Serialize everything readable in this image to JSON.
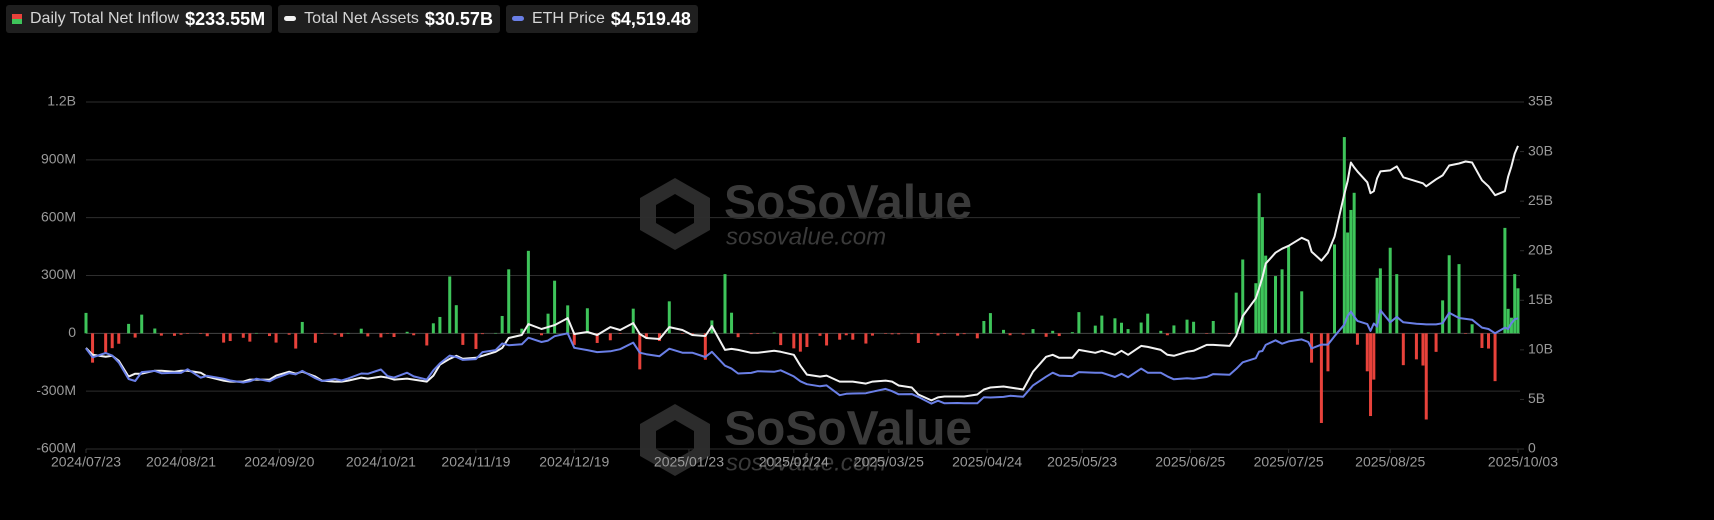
{
  "chart_data": {
    "type": "bar-line",
    "series": [
      {
        "name": "Daily Total Net Inflow",
        "latest_label": "$233.55M",
        "type": "bar",
        "colors": {
          "positive": "#3ec45a",
          "negative": "#e8423b"
        },
        "values": [
          106,
          -152,
          -98,
          -77,
          -54,
          49,
          -22,
          97,
          25,
          -12,
          -13,
          -7,
          -1,
          -3,
          -15,
          -48,
          -40,
          -23,
          -43,
          2,
          -14,
          -48,
          -7,
          -79,
          59,
          -49,
          -2,
          -7,
          -18,
          2,
          24,
          -16,
          -21,
          -1,
          -19,
          8,
          -10,
          -63,
          52,
          85,
          295,
          146,
          -60,
          -81,
          -4,
          2,
          90,
          332,
          24,
          428,
          -10,
          102,
          273,
          145,
          -60,
          130,
          -50,
          -36,
          -3,
          128,
          -187,
          -23,
          -40,
          166,
          -2,
          -10,
          -137,
          67,
          307,
          107,
          -20,
          -4,
          -1,
          4,
          -61,
          -78,
          -95,
          -71,
          -13,
          -63,
          -33,
          -10,
          -33,
          -53,
          -12,
          -1,
          -5,
          -5,
          -4,
          -50,
          -3,
          -11,
          -3,
          -12,
          -4,
          -26,
          64,
          105,
          18,
          -10,
          -6,
          22,
          -18,
          13,
          -14,
          6,
          110,
          40,
          92,
          78,
          55,
          22,
          56,
          102,
          13,
          -10,
          41,
          71,
          60,
          -1,
          64,
          -1,
          211,
          383,
          260,
          727,
          603,
          403,
          297,
          332,
          453,
          218,
          5,
          -152,
          -465,
          -197,
          461,
          1018,
          523,
          640,
          729,
          -59,
          -197,
          -429,
          -240,
          288,
          337,
          444,
          307,
          -165,
          -135,
          -167,
          -447,
          -96,
          171,
          405,
          359,
          -1,
          47,
          -76,
          -79,
          -248,
          547,
          127,
          81,
          307,
          233.55
        ]
      },
      {
        "name": "Total Net Assets",
        "latest_label": "$30.57B",
        "type": "line",
        "axis": "y2",
        "color": "#f2f2f2",
        "values": [
          10.2,
          9.5,
          9.3,
          9.4,
          8.9,
          7.3,
          7.6,
          7.6,
          7.9,
          7.9,
          7.8,
          7.9,
          7.9,
          7.7,
          7.3,
          6.9,
          6.8,
          6.8,
          7.0,
          7.0,
          7.0,
          7.4,
          7.8,
          7.6,
          7.8,
          7.3,
          6.9,
          6.8,
          6.8,
          6.9,
          7.2,
          7.1,
          7.3,
          7.2,
          7.0,
          7.1,
          7.0,
          6.8,
          7.4,
          8.5,
          9.1,
          9.4,
          9.1,
          9.2,
          9.4,
          9.8,
          10.2,
          11.2,
          11.5,
          12.6,
          12.1,
          12.3,
          12.5,
          13.2,
          11.6,
          11.8,
          11.5,
          12.3,
          12.0,
          12.7,
          11.6,
          11.2,
          11.1,
          12.3,
          12.0,
          11.5,
          11.4,
          12.4,
          10.0,
          10.1,
          10.0,
          9.7,
          9.7,
          9.9,
          9.8,
          9.5,
          8.4,
          7.5,
          7.3,
          7.4,
          6.8,
          6.8,
          6.8,
          6.6,
          6.8,
          6.9,
          6.8,
          6.4,
          6.2,
          5.5,
          4.9,
          5.2,
          5.3,
          5.3,
          5.3,
          5.5,
          6.0,
          6.2,
          6.3,
          6.2,
          6.0,
          7.8,
          9.3,
          9.5,
          9.2,
          9.2,
          10.0,
          9.7,
          9.9,
          9.5,
          9.9,
          9.5,
          10.4,
          10.3,
          10.0,
          9.5,
          9.4,
          9.8,
          9.9,
          10.5,
          10.5,
          10.4,
          11.4,
          13.4,
          15.2,
          16.2,
          17.3,
          18.7,
          19.8,
          20.2,
          20.5,
          21.3,
          21.0,
          19.9,
          19.0,
          19.8,
          21.4,
          25.7,
          27.0,
          28.9,
          28.4,
          28.0,
          26.9,
          25.8,
          26.0,
          27.3,
          28.0,
          28.1,
          28.5,
          27.4,
          27.0,
          26.8,
          26.5,
          27.2,
          27.6,
          28.6,
          28.8,
          29.0,
          28.9,
          27.1,
          26.5,
          25.6,
          26.0,
          27.5,
          28.5,
          29.8,
          30.57
        ]
      },
      {
        "name": "ETH Price",
        "latest_label": "$4,519.48",
        "type": "line",
        "axis": "y3",
        "color": "#6a7fe6",
        "values": [
          3480,
          3170,
          3320,
          3230,
          2990,
          2420,
          2350,
          2660,
          2700,
          2620,
          2640,
          2630,
          2760,
          2470,
          2530,
          2430,
          2370,
          2300,
          2340,
          2430,
          2340,
          2460,
          2620,
          2580,
          2700,
          2450,
          2350,
          2420,
          2370,
          2440,
          2610,
          2600,
          2750,
          2520,
          2470,
          2640,
          2510,
          2400,
          2720,
          2960,
          3230,
          3180,
          3080,
          3110,
          3350,
          3420,
          3650,
          3590,
          3620,
          3850,
          3700,
          3750,
          3900,
          4000,
          3500,
          3420,
          3350,
          3380,
          3450,
          3680,
          3330,
          3280,
          3210,
          3470,
          3330,
          3330,
          3180,
          3360,
          2880,
          2780,
          2610,
          2630,
          2690,
          2670,
          2720,
          2510,
          2340,
          2240,
          2170,
          2200,
          1860,
          1910,
          1920,
          1930,
          1980,
          2080,
          2000,
          1890,
          1900,
          1800,
          1570,
          1670,
          1580,
          1590,
          1580,
          1580,
          1790,
          1780,
          1800,
          1840,
          1810,
          2200,
          2500,
          2640,
          2540,
          2520,
          2660,
          2640,
          2640,
          2490,
          2600,
          2480,
          2780,
          2640,
          2640,
          2510,
          2410,
          2450,
          2430,
          2490,
          2590,
          2570,
          2770,
          3000,
          3140,
          3370,
          3390,
          3600,
          3760,
          3640,
          3720,
          3790,
          3700,
          3480,
          3610,
          3610,
          3900,
          4300,
          4600,
          4750,
          4580,
          4430,
          4320,
          4080,
          4340,
          4230,
          4800,
          4380,
          4570,
          4380,
          4330,
          4320,
          4310,
          4310,
          4350,
          4710,
          4530,
          4500,
          4470,
          4200,
          4150,
          4000,
          4200,
          4150,
          4350,
          4490,
          4519.48
        ]
      }
    ],
    "x": [
      "2024/07/23",
      "2024/07/25",
      "2024/07/29",
      "2024/07/31",
      "2024/08/02",
      "2024/08/05",
      "2024/08/07",
      "2024/08/09",
      "2024/08/13",
      "2024/08/15",
      "2024/08/19",
      "2024/08/21",
      "2024/08/23",
      "2024/08/27",
      "2024/08/29",
      "2024/09/03",
      "2024/09/05",
      "2024/09/09",
      "2024/09/11",
      "2024/09/13",
      "2024/09/17",
      "2024/09/19",
      "2024/09/23",
      "2024/09/25",
      "2024/09/27",
      "2024/10/01",
      "2024/10/03",
      "2024/10/07",
      "2024/10/09",
      "2024/10/11",
      "2024/10/15",
      "2024/10/17",
      "2024/10/21",
      "2024/10/23",
      "2024/10/25",
      "2024/10/29",
      "2024/10/31",
      "2024/11/04",
      "2024/11/06",
      "2024/11/08",
      "2024/11/11",
      "2024/11/13",
      "2024/11/15",
      "2024/11/19",
      "2024/11/21",
      "2024/11/25",
      "2024/11/27",
      "2024/11/29",
      "2024/12/03",
      "2024/12/05",
      "2024/12/09",
      "2024/12/11",
      "2024/12/13",
      "2024/12/17",
      "2024/12/19",
      "2024/12/23",
      "2024/12/26",
      "2024/12/30",
      "2025/01/02",
      "2025/01/06",
      "2025/01/08",
      "2025/01/10",
      "2025/01/14",
      "2025/01/17",
      "2025/01/21",
      "2025/01/24",
      "2025/01/28",
      "2025/01/30",
      "2025/02/03",
      "2025/02/05",
      "2025/02/07",
      "2025/02/11",
      "2025/02/13",
      "2025/02/18",
      "2025/02/20",
      "2025/02/24",
      "2025/02/26",
      "2025/02/28",
      "2025/03/04",
      "2025/03/06",
      "2025/03/10",
      "2025/03/12",
      "2025/03/14",
      "2025/03/18",
      "2025/03/20",
      "2025/03/24",
      "2025/03/26",
      "2025/03/28",
      "2025/04/01",
      "2025/04/03",
      "2025/04/07",
      "2025/04/09",
      "2025/04/11",
      "2025/04/15",
      "2025/04/17",
      "2025/04/21",
      "2025/04/23",
      "2025/04/25",
      "2025/04/29",
      "2025/05/01",
      "2025/05/05",
      "2025/05/08",
      "2025/05/12",
      "2025/05/14",
      "2025/05/16",
      "2025/05/20",
      "2025/05/22",
      "2025/05/27",
      "2025/05/29",
      "2025/06/02",
      "2025/06/04",
      "2025/06/06",
      "2025/06/10",
      "2025/06/12",
      "2025/06/16",
      "2025/06/18",
      "2025/06/20",
      "2025/06/24",
      "2025/06/26",
      "2025/06/30",
      "2025/07/02",
      "2025/07/07",
      "2025/07/09",
      "2025/07/11",
      "2025/07/15",
      "2025/07/16",
      "2025/07/17",
      "2025/07/18",
      "2025/07/21",
      "2025/07/23",
      "2025/07/25",
      "2025/07/29",
      "2025/07/31",
      "2025/08/01",
      "2025/08/04",
      "2025/08/06",
      "2025/08/08",
      "2025/08/11",
      "2025/08/12",
      "2025/08/13",
      "2025/08/14",
      "2025/08/15",
      "2025/08/18",
      "2025/08/19",
      "2025/08/20",
      "2025/08/21",
      "2025/08/22",
      "2025/08/25",
      "2025/08/27",
      "2025/08/29",
      "2025/09/02",
      "2025/09/04",
      "2025/09/05",
      "2025/09/08",
      "2025/09/10",
      "2025/09/12",
      "2025/09/15",
      "2025/09/17",
      "2025/09/19",
      "2025/09/22",
      "2025/09/24",
      "2025/09/26",
      "2025/09/29",
      "2025/09/30",
      "2025/10/01",
      "2025/10/02",
      "2025/10/03"
    ],
    "xlim": [
      "2024/07/23",
      "2025/10/03"
    ],
    "xticks": [
      "2024/07/23",
      "2024/08/21",
      "2024/09/20",
      "2024/10/21",
      "2024/11/19",
      "2024/12/19",
      "2025/01/23",
      "2025/02/24",
      "2025/03/25",
      "2025/04/24",
      "2025/05/23",
      "2025/06/25",
      "2025/07/25",
      "2025/08/25",
      "2025/10/03"
    ],
    "ylim": [
      -600,
      1200
    ],
    "yticks": [
      {
        "value": -600,
        "label": "-600M"
      },
      {
        "value": -300,
        "label": "-300M"
      },
      0,
      {
        "value": 300,
        "label": "300M"
      },
      {
        "value": 600,
        "label": "600M"
      },
      {
        "value": 900,
        "label": "900M"
      },
      {
        "value": 1200,
        "label": "1.2B"
      }
    ],
    "y2lim": [
      0,
      35
    ],
    "y2ticks": [
      0,
      {
        "value": 5,
        "label": "5B"
      },
      {
        "value": 10,
        "label": "10B"
      },
      {
        "value": 15,
        "label": "15B"
      },
      {
        "value": 20,
        "label": "20B"
      },
      {
        "value": 25,
        "label": "25B"
      },
      {
        "value": 30,
        "label": "30B"
      },
      {
        "value": 35,
        "label": "35B"
      }
    ],
    "y3lim": [
      0,
      12000
    ],
    "grid": true,
    "watermark": {
      "brand": "SoSoValue",
      "url": "sosovalue.com"
    }
  }
}
